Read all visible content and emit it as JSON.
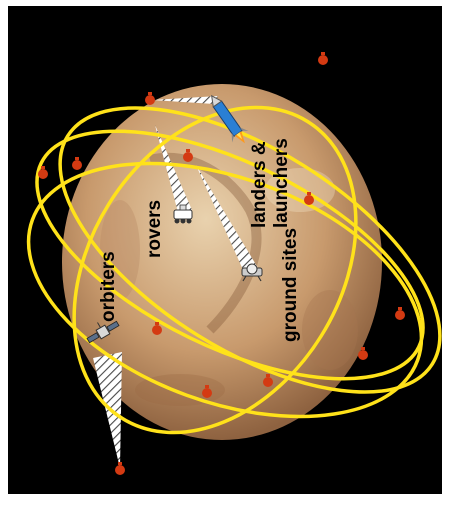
{
  "labels": {
    "orbiters": "orbiters",
    "rovers": "rovers",
    "landers_line1": "landers &",
    "landers_line2": "launchers",
    "ground_sites": "ground sites"
  },
  "colors": {
    "space": "#000000",
    "orbit": "#ffe21a",
    "frame": "#ffffff",
    "planet_light": "#e9d2ae",
    "planet_mid": "#c89a6d",
    "planet_dark": "#8e6240",
    "relay_node": "#d43a12",
    "beam_stripe": "#4a4a4a",
    "label": "#000000"
  },
  "icons": {
    "planet": "mars-globe-icon",
    "orbiter": "satellite-icon",
    "rover": "rover-icon",
    "launcher": "rocket-icon",
    "ground_site": "ground-site-icon",
    "relay": "relay-node-icon"
  }
}
